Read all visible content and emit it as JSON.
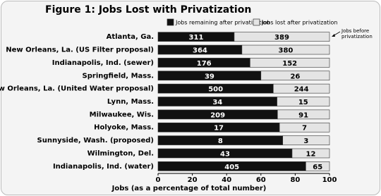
{
  "chart_data": {
    "type": "stacked100",
    "title": "Figure 1: Jobs Lost with Privatization",
    "annotation": "Jobs before privatization",
    "xlabel": "Jobs (as a percentage of total number)",
    "categories": [
      "Atlanta, Ga.",
      "New Orleans, La. (US Filter proposal)",
      "Indianapolis, Ind. (sewer)",
      "Springfield, Mass.",
      "New Orleans, La. (United Water proposal)",
      "Lynn, Mass.",
      "Milwaukee, Wis.",
      "Holyoke, Mass.",
      "Sunnyside, Wash. (proposed)",
      "Wilmington, Del.",
      "Indianapolis, Ind. (water)"
    ],
    "series": [
      {
        "name": "Jobs remaining after privatization",
        "color": "#111111",
        "values": [
          311,
          364,
          176,
          39,
          500,
          34,
          209,
          17,
          8,
          43,
          405
        ]
      },
      {
        "name": "Jobs lost after privatization",
        "color": "#e4e4e4",
        "values": [
          389,
          380,
          152,
          26,
          244,
          15,
          91,
          7,
          3,
          12,
          65
        ]
      }
    ],
    "xlim": [
      0,
      100
    ],
    "xticks": [
      0,
      20,
      40,
      60,
      80,
      100
    ]
  }
}
